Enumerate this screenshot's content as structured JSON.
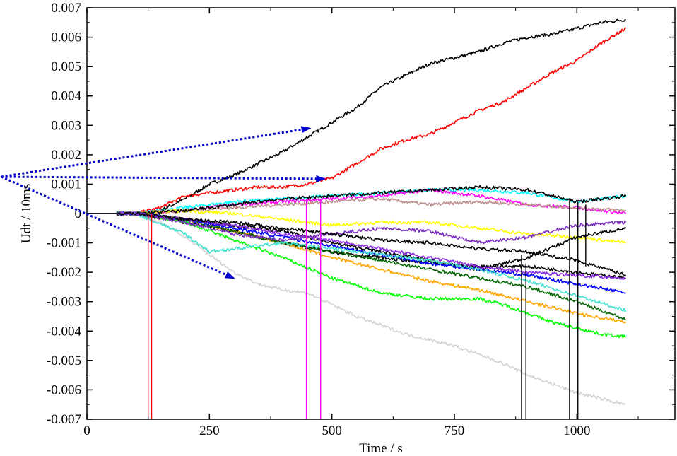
{
  "chart_data": {
    "type": "line",
    "title": "",
    "xlabel": "Time / s",
    "ylabel": "Udt / 10ms",
    "xlim": [
      0,
      1200
    ],
    "ylim": [
      -0.007,
      0.007
    ],
    "x_ticks": [
      0,
      250,
      500,
      750,
      1000
    ],
    "x_tick_labels": [
      "0",
      "250",
      "500",
      "750",
      "1000"
    ],
    "y_ticks": [
      0.007,
      0.006,
      0.005,
      0.004,
      0.003,
      0.002,
      0.001,
      0,
      -0.001,
      -0.002,
      -0.003,
      -0.004,
      -0.005,
      -0.006,
      -0.007
    ],
    "y_tick_labels": [
      "0.007",
      "0.006",
      "0.005",
      "0.004",
      "0.003",
      "0.002",
      "0.001",
      "0",
      "-0.001",
      "-0.002",
      "-0.003",
      "-0.004",
      "-0.005",
      "-0.006",
      "-0.007"
    ],
    "grid": false,
    "legend": "none",
    "series": [
      {
        "color": "#000000",
        "x": [
          0,
          100,
          150,
          200,
          250,
          300,
          350,
          400,
          450,
          500,
          550,
          600,
          650,
          700,
          750,
          800,
          850,
          900,
          950,
          1000,
          1050,
          1100
        ],
        "y": [
          0,
          0,
          0.0001,
          0.0005,
          0.001,
          0.0013,
          0.0017,
          0.0021,
          0.0026,
          0.0031,
          0.0036,
          0.0043,
          0.0047,
          0.0051,
          0.0053,
          0.0055,
          0.0058,
          0.006,
          0.0061,
          0.0063,
          0.0065,
          0.0066
        ]
      },
      {
        "color": "#ff0000",
        "x": [
          0,
          100,
          150,
          200,
          250,
          300,
          350,
          400,
          450,
          500,
          550,
          600,
          650,
          700,
          750,
          800,
          850,
          900,
          950,
          1000,
          1050,
          1100
        ],
        "y": [
          0,
          0,
          0.0002,
          0.0006,
          0.0007,
          0.0008,
          0.0009,
          0.0009,
          0.001,
          0.0012,
          0.0017,
          0.0022,
          0.0025,
          0.0027,
          0.0031,
          0.0035,
          0.0038,
          0.0043,
          0.0048,
          0.0052,
          0.0058,
          0.0063
        ]
      },
      {
        "color": "#00ffff",
        "x": [
          0,
          100,
          200,
          300,
          400,
          500,
          600,
          700,
          800,
          900,
          1000,
          1100
        ],
        "y": [
          0,
          0,
          0.0002,
          0.0004,
          0.0005,
          0.0006,
          0.0007,
          0.0008,
          0.0008,
          0.0007,
          0.0004,
          0.0006
        ]
      },
      {
        "color": "#ff00ff",
        "x": [
          0,
          100,
          200,
          300,
          400,
          500,
          600,
          700,
          800,
          900,
          1000,
          1100
        ],
        "y": [
          0,
          0,
          0.0001,
          0.0003,
          0.0004,
          0.0005,
          0.0006,
          0.0008,
          0.0006,
          0.0003,
          0.0002,
          0.0
        ]
      },
      {
        "color": "#bc8f8f",
        "x": [
          0,
          100,
          200,
          300,
          400,
          500,
          600,
          700,
          800,
          900,
          1000,
          1100
        ],
        "y": [
          0,
          0,
          0.0001,
          0.0002,
          0.0003,
          0.0004,
          0.0005,
          0.0003,
          0.0004,
          0.0003,
          0.0002,
          0.0001
        ]
      },
      {
        "color": "#ffff00",
        "x": [
          0,
          100,
          200,
          300,
          400,
          500,
          600,
          700,
          800,
          900,
          1000,
          1100
        ],
        "y": [
          0,
          0,
          0.0001,
          0.0,
          -0.0002,
          -0.0004,
          -0.0003,
          -0.0003,
          -0.0005,
          -0.0007,
          -0.0008,
          -0.001
        ]
      },
      {
        "color": "#000000",
        "x": [
          0,
          100,
          200,
          300,
          400,
          500,
          600,
          700,
          800,
          900,
          1000,
          1100
        ],
        "y": [
          0,
          0,
          -0.0002,
          -0.0004,
          -0.0006,
          -0.001,
          -0.0013,
          -0.0016,
          -0.0019,
          -0.0015,
          -0.0008,
          -0.0005
        ]
      },
      {
        "color": "#000000",
        "x": [
          0,
          100,
          200,
          300,
          400,
          500,
          600,
          700,
          800,
          900,
          1000,
          1100
        ],
        "y": [
          0,
          0,
          -0.0003,
          -0.0006,
          -0.001,
          -0.0013,
          -0.0015,
          -0.0017,
          -0.0018,
          -0.0018,
          -0.002,
          -0.0022
        ]
      },
      {
        "color": "#000000",
        "x": [
          0,
          100,
          200,
          300,
          400,
          500,
          600,
          700,
          800,
          900,
          1000,
          1100
        ],
        "y": [
          0,
          0,
          0.0001,
          0.0003,
          0.0005,
          0.0006,
          0.0007,
          0.0008,
          0.0009,
          0.0008,
          0.0004,
          0.0006
        ]
      },
      {
        "color": "#d3d3d3",
        "x": [
          0,
          100,
          150,
          200,
          250,
          300,
          350,
          400,
          450,
          500,
          550,
          600,
          650,
          700,
          750,
          800,
          850,
          900,
          950,
          1000,
          1050,
          1100
        ],
        "y": [
          0,
          0,
          -0.0003,
          -0.0008,
          -0.0014,
          -0.002,
          -0.0024,
          -0.0026,
          -0.0027,
          -0.0031,
          -0.0035,
          -0.0038,
          -0.0041,
          -0.0043,
          -0.0045,
          -0.0048,
          -0.0051,
          -0.0055,
          -0.0058,
          -0.0061,
          -0.0063,
          -0.0065
        ]
      },
      {
        "color": "#00ff00",
        "x": [
          0,
          100,
          200,
          300,
          400,
          500,
          600,
          700,
          750,
          800,
          850,
          900,
          950,
          1000,
          1050,
          1100
        ],
        "y": [
          0,
          0,
          -0.0003,
          -0.0009,
          -0.0015,
          -0.0022,
          -0.0027,
          -0.0029,
          -0.0029,
          -0.0029,
          -0.0031,
          -0.0034,
          -0.0037,
          -0.0039,
          -0.0041,
          -0.0042
        ]
      },
      {
        "color": "#ffa500",
        "x": [
          0,
          100,
          200,
          300,
          400,
          500,
          600,
          700,
          800,
          900,
          1000,
          1100
        ],
        "y": [
          0,
          0,
          -0.0002,
          -0.0006,
          -0.001,
          -0.0015,
          -0.0019,
          -0.0023,
          -0.0026,
          -0.003,
          -0.0034,
          -0.0037
        ]
      },
      {
        "color": "#006400",
        "x": [
          0,
          100,
          200,
          300,
          400,
          500,
          600,
          700,
          800,
          900,
          1000,
          1100
        ],
        "y": [
          0,
          0,
          -0.0002,
          -0.0006,
          -0.001,
          -0.0013,
          -0.0016,
          -0.0019,
          -0.0022,
          -0.0025,
          -0.003,
          -0.0036
        ]
      },
      {
        "color": "#0000ff",
        "x": [
          0,
          100,
          200,
          300,
          400,
          500,
          600,
          700,
          800,
          900,
          1000,
          1100
        ],
        "y": [
          0,
          0,
          -0.0002,
          -0.0005,
          -0.0008,
          -0.0011,
          -0.0014,
          -0.0017,
          -0.0019,
          -0.0021,
          -0.0024,
          -0.0027
        ]
      },
      {
        "color": "#40e0d0",
        "x": [
          0,
          100,
          200,
          250,
          300,
          400,
          500,
          600,
          700,
          800,
          900,
          1000,
          1100
        ],
        "y": [
          0,
          0,
          -0.0007,
          -0.0013,
          -0.0012,
          -0.001,
          -0.0012,
          -0.0014,
          -0.0016,
          -0.0019,
          -0.0023,
          -0.0028,
          -0.0033
        ]
      },
      {
        "color": "#8a2be2",
        "x": [
          0,
          100,
          200,
          300,
          400,
          500,
          600,
          700,
          800,
          900,
          1000,
          1100
        ],
        "y": [
          0,
          0,
          -0.0002,
          -0.0004,
          -0.0007,
          -0.0009,
          -0.0012,
          -0.0015,
          -0.0018,
          -0.002,
          -0.0021,
          -0.0022
        ]
      },
      {
        "color": "#7b2fbe",
        "x": [
          0,
          100,
          200,
          300,
          400,
          500,
          600,
          700,
          800,
          900,
          1000,
          1100
        ],
        "y": [
          0,
          0,
          -0.0003,
          -0.0007,
          -0.0009,
          -0.0007,
          -0.0005,
          -0.0006,
          -0.001,
          -0.0008,
          -0.0004,
          -0.0003
        ]
      },
      {
        "color": "#000000",
        "x": [
          0,
          100,
          200,
          300,
          400,
          500,
          600,
          700,
          800,
          900,
          1000,
          1100
        ],
        "y": [
          0,
          0,
          -0.0002,
          -0.0003,
          -0.0005,
          -0.0007,
          -0.0009,
          -0.001,
          -0.0012,
          -0.0013,
          -0.0016,
          -0.0021
        ]
      }
    ],
    "spikes": [
      {
        "color": "#ff0000",
        "x": 125,
        "y_from": 0,
        "y_to": -0.007
      },
      {
        "color": "#ff0000",
        "x": 132,
        "y_from": 0,
        "y_to": -0.007
      },
      {
        "color": "#ff00ff",
        "x": 448,
        "y_from": 0.0005,
        "y_to": -0.007
      },
      {
        "color": "#ff00ff",
        "x": 477,
        "y_from": 0.0005,
        "y_to": -0.007
      },
      {
        "color": "#000000",
        "x": 887,
        "y_from": -0.0014,
        "y_to": -0.007
      },
      {
        "color": "#000000",
        "x": 896,
        "y_from": -0.0017,
        "y_to": -0.007
      },
      {
        "color": "#000000",
        "x": 985,
        "y_from": 0.0005,
        "y_to": -0.007
      },
      {
        "color": "#000000",
        "x": 1002,
        "y_from": 0.0004,
        "y_to": -0.007
      },
      {
        "color": "#000000",
        "x": 1018,
        "y_from": 0.0003,
        "y_to": -0.0018
      }
    ],
    "annotations": [
      {
        "type": "dotted-arrow",
        "color": "#0000cd",
        "from": [
          -175,
          0.00125
        ],
        "to": [
          455,
          0.0029
        ]
      },
      {
        "type": "dotted-arrow",
        "color": "#0000cd",
        "from": [
          -175,
          0.00125
        ],
        "to": [
          485,
          0.00118
        ]
      },
      {
        "type": "dotted-arrow",
        "color": "#0000cd",
        "from": [
          -175,
          0.00125
        ],
        "to": [
          300,
          -0.0022
        ]
      }
    ]
  }
}
